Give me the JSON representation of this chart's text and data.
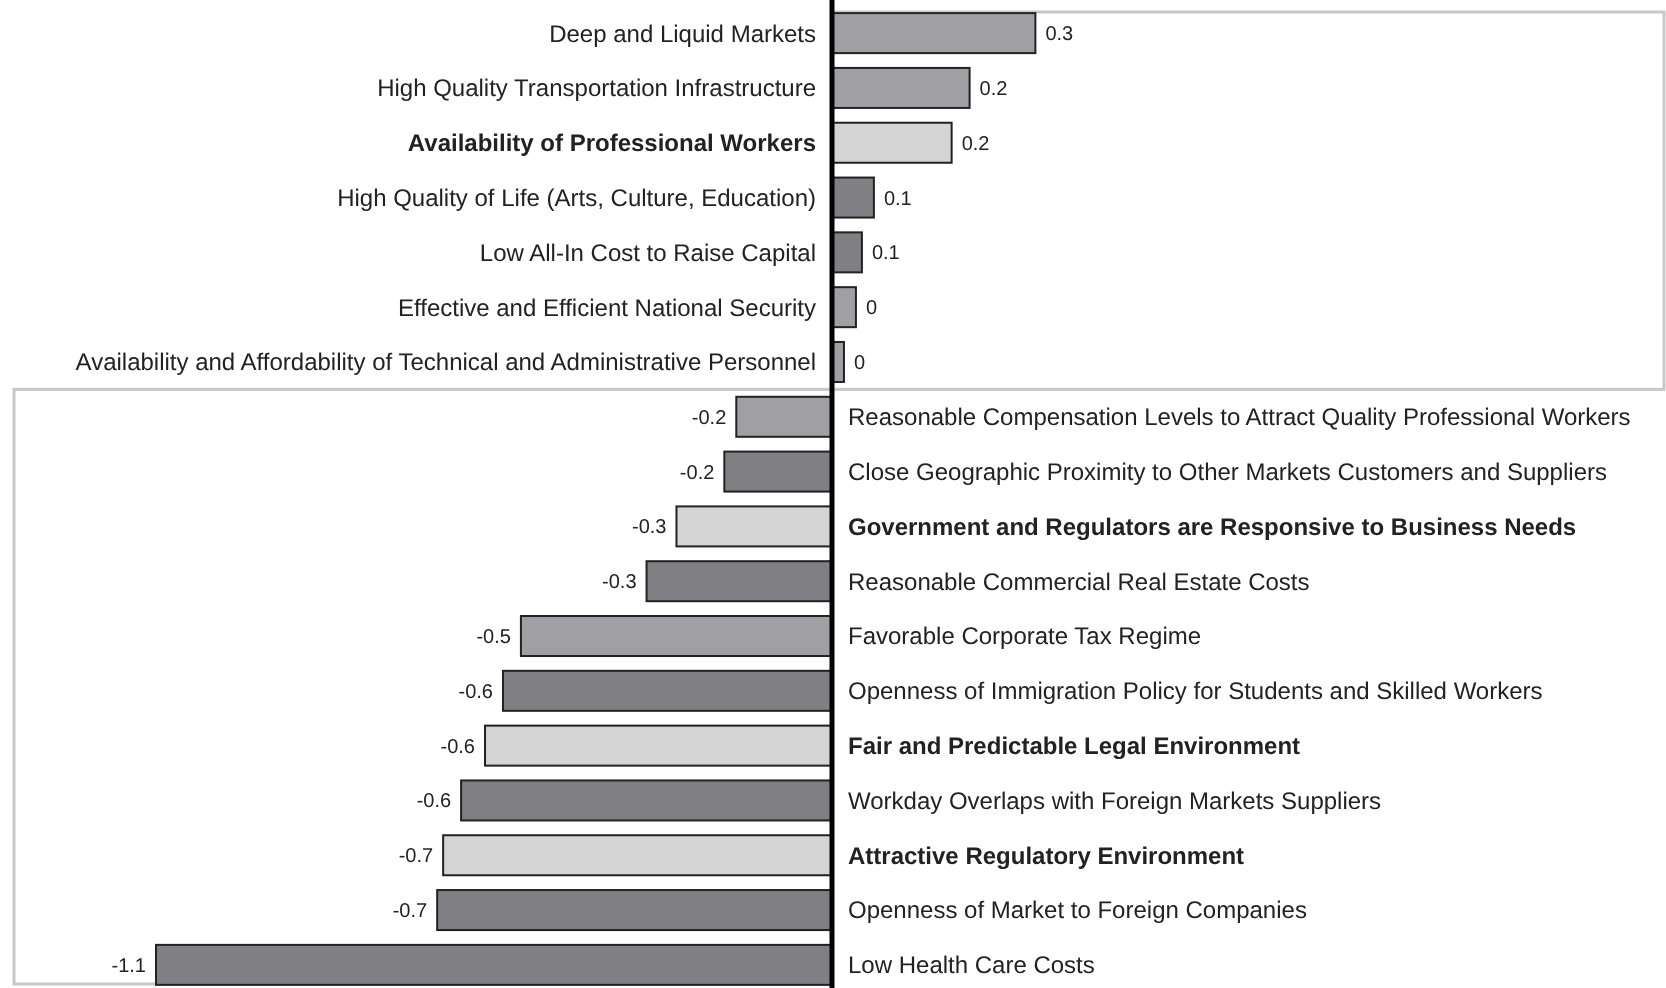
{
  "chart_data": {
    "type": "bar",
    "orientation": "horizontal",
    "categories": [
      "Deep and Liquid Markets",
      "High Quality Transportation Infrastructure",
      "Availability of Professional Workers",
      "High Quality of Life (Arts, Culture, Education)",
      "Low All-In Cost to Raise Capital",
      "Effective and Efficient National Security",
      "Availability and Affordability of Technical and Administrative Personnel",
      "Reasonable Compensation Levels to Attract Quality Professional Workers",
      "Close Geographic Proximity to Other Markets Customers and Suppliers",
      "Government and Regulators are Responsive to Business Needs",
      "Reasonable Commercial Real Estate Costs",
      "Favorable Corporate Tax Regime",
      "Openness of Immigration Policy for Students and Skilled Workers",
      "Fair and Predictable Legal Environment",
      "Workday Overlaps with Foreign Markets Suppliers",
      "Attractive Regulatory Environment",
      "Openness of Market to Foreign Companies",
      "Low Health Care Costs"
    ],
    "values": [
      0.34,
      0.23,
      0.2,
      0.07,
      0.05,
      0.04,
      0.02,
      -0.16,
      -0.18,
      -0.26,
      -0.31,
      -0.52,
      -0.55,
      -0.58,
      -0.62,
      -0.65,
      -0.66,
      -1.13
    ],
    "value_labels": [
      "0.3",
      "0.2",
      "0.2",
      "0.1",
      "0.1",
      "0",
      "0",
      "-0.2",
      "-0.2",
      "-0.3",
      "-0.3",
      "-0.5",
      "-0.6",
      "-0.6",
      "-0.6",
      "-0.7",
      "-0.7",
      "-1.1"
    ],
    "colors": [
      "#a0a0a4",
      "#a0a0a4",
      "#d4d4d4",
      "#7f7f84",
      "#7f7f84",
      "#a0a0a4",
      "#a0a0a4",
      "#a0a0a4",
      "#7f7f84",
      "#d4d4d4",
      "#7f7f84",
      "#a0a0a4",
      "#7f7f84",
      "#d4d4d4",
      "#7f7f84",
      "#d4d4d4",
      "#7f7f84",
      "#7f7f84"
    ]
  }
}
